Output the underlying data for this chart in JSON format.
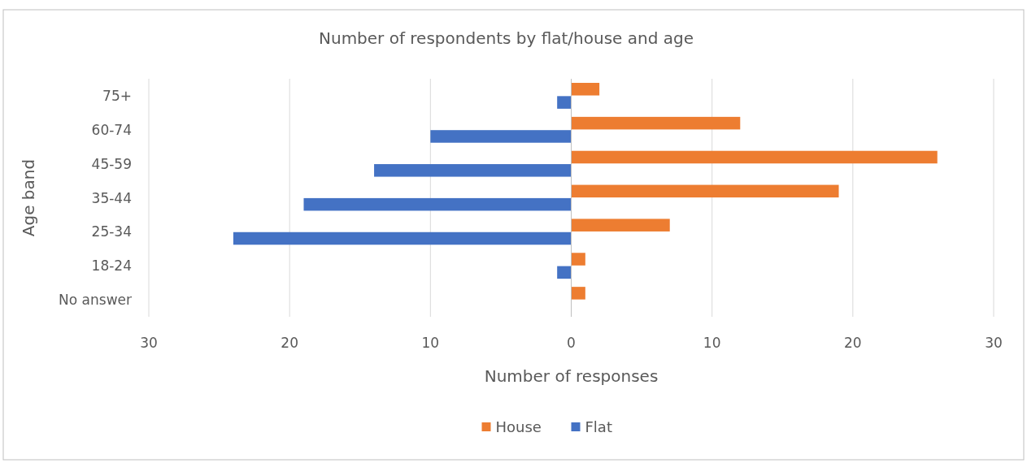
{
  "chart_data": {
    "type": "bar",
    "orientation": "horizontal",
    "title": "Number of respondents by flat/house and age",
    "xlabel": "Number of responses",
    "ylabel": "Age band",
    "categories": [
      "75+",
      "60-74",
      "45-59",
      "35-44",
      "25-34",
      "18-24",
      "No answer"
    ],
    "series": [
      {
        "name": "House",
        "color": "#ed7d31",
        "values": [
          2,
          12,
          26,
          19,
          7,
          1,
          1
        ]
      },
      {
        "name": "Flat",
        "color": "#4472c4",
        "values": [
          -1,
          -10,
          -14,
          -19,
          -24,
          -1,
          null
        ]
      }
    ],
    "xlim": [
      -30,
      30
    ],
    "xticks": [
      {
        "value": -30,
        "label": "30"
      },
      {
        "value": -20,
        "label": "20"
      },
      {
        "value": -10,
        "label": "10"
      },
      0,
      10,
      20,
      30
    ],
    "grid": "x",
    "legend": "bottom"
  }
}
